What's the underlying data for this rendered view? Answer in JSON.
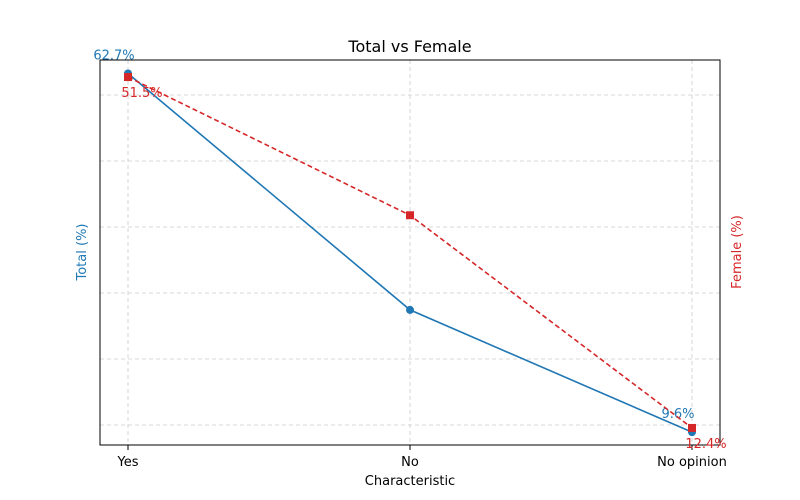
{
  "chart_data": {
    "type": "line",
    "title": "Total vs Female",
    "xlabel": "Characteristic",
    "ylabel_left": "Total (%)",
    "ylabel_right": "Female (%)",
    "categories": [
      "Yes",
      "No",
      "No opinion"
    ],
    "grid": true,
    "series": [
      {
        "name": "Total (%)",
        "axis": "left",
        "color": "#1f77b4",
        "line_style": "solid",
        "marker": "circle",
        "values": [
          62.7,
          27.7,
          9.6
        ],
        "value_labels": [
          "62.7%",
          "",
          "9.6%"
        ],
        "ylim": [
          7.7,
          64.7
        ]
      },
      {
        "name": "Female (%)",
        "axis": "right",
        "color": "#d62728",
        "line_style": "dashed",
        "marker": "square",
        "values": [
          51.5,
          36.1,
          12.4
        ],
        "value_labels": [
          "51.5%",
          "",
          "12.4%"
        ],
        "ylim": [
          10.5,
          53.4
        ]
      }
    ]
  }
}
